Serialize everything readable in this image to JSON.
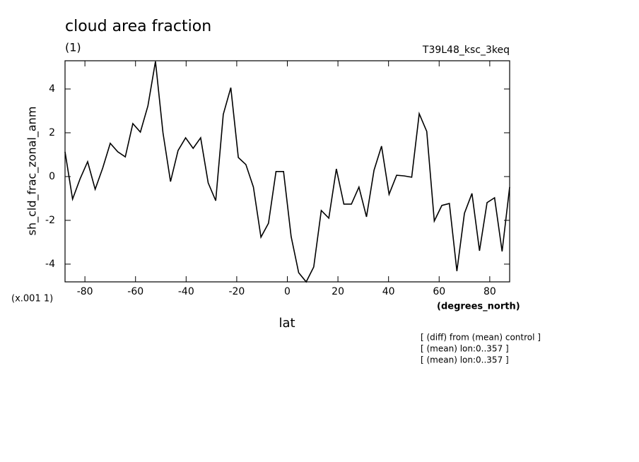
{
  "chart_data": {
    "type": "line",
    "title": "cloud area fraction",
    "subtitle": "(1)",
    "experiment": "T39L48_ksc_3keq",
    "y_label": "sh_cld_frac_zonal_anm",
    "y_scale_label": "(x.001 1)",
    "x_units": "(degrees_north)",
    "x_label": "lat",
    "notes": [
      "[ (diff) from (mean) control ]",
      "[ (mean) lon:0..357 ]",
      "[ (mean) lon:0..357 ]"
    ],
    "xlim": [
      -87.86,
      87.86
    ],
    "ylim": [
      -4.81,
      5.29
    ],
    "xticks": [
      -80,
      -60,
      -40,
      -20,
      0,
      20,
      40,
      60,
      80
    ],
    "yticks": [
      -4,
      -2,
      0,
      2,
      4
    ],
    "x": [
      -87.86,
      -84.88,
      -81.9,
      -78.93,
      -75.95,
      -72.97,
      -69.99,
      -67.01,
      -64.04,
      -61.06,
      -58.08,
      -55.1,
      -52.12,
      -49.15,
      -46.17,
      -43.19,
      -40.21,
      -37.23,
      -34.26,
      -31.28,
      -28.3,
      -25.32,
      -22.34,
      -19.37,
      -16.39,
      -13.41,
      -10.43,
      -7.45,
      -4.48,
      -1.5,
      1.5,
      4.48,
      7.45,
      10.43,
      13.41,
      16.39,
      19.37,
      22.34,
      25.32,
      28.3,
      31.28,
      34.26,
      37.23,
      40.21,
      43.19,
      46.17,
      49.15,
      52.12,
      55.1,
      58.08,
      61.06,
      64.04,
      67.01,
      69.99,
      72.97,
      75.95,
      78.93,
      81.9,
      84.88,
      87.86
    ],
    "series": [
      {
        "color": "#000000",
        "values": [
          1.13,
          -1.03,
          -0.1,
          0.68,
          -0.58,
          0.39,
          1.52,
          1.13,
          0.9,
          2.42,
          2.03,
          3.23,
          5.26,
          2.0,
          -0.23,
          1.19,
          1.77,
          1.29,
          1.77,
          -0.29,
          -1.1,
          2.84,
          4.06,
          0.87,
          0.55,
          -0.48,
          -2.77,
          -2.13,
          0.23,
          0.23,
          -2.74,
          -4.39,
          -4.81,
          -4.13,
          -1.55,
          -1.9,
          0.35,
          -1.26,
          -1.26,
          -0.48,
          -1.84,
          0.29,
          1.39,
          -0.81,
          0.06,
          0.03,
          -0.03,
          2.87,
          2.06,
          -2.03,
          -1.32,
          -1.23,
          -4.32,
          -1.68,
          -0.77,
          -3.39,
          -1.19,
          -0.97,
          -3.42,
          -0.48
        ]
      }
    ]
  }
}
